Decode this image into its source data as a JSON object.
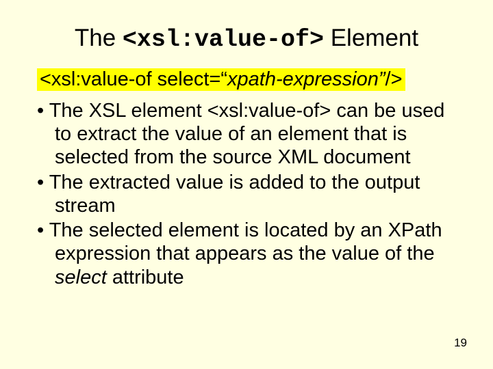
{
  "title": {
    "pre": "The ",
    "code": "<xsl:value-of>",
    "post": " Element",
    "fontsize_pt": 35,
    "color": "#000000",
    "code_fontfamily": "Courier New"
  },
  "syntax": {
    "pre": "<xsl:value-of select=",
    "quote_open": "“",
    "ital": "xpath-expression”",
    "post": "/>",
    "background": "#ffff00",
    "fontsize_pt": 29
  },
  "bullets": {
    "fontsize_pt": 29,
    "items": [
      {
        "text": "The XSL element <xsl:value-of> can be used to extract the value of an element that is selected from the source XML document"
      },
      {
        "text": "The extracted value is added to the output stream"
      },
      {
        "pre": "The selected element is located by an XPath expression that appears as the value of the ",
        "ital": "select",
        "post": " attribute"
      }
    ]
  },
  "page_number": "19",
  "background_color": "#ffffe2"
}
